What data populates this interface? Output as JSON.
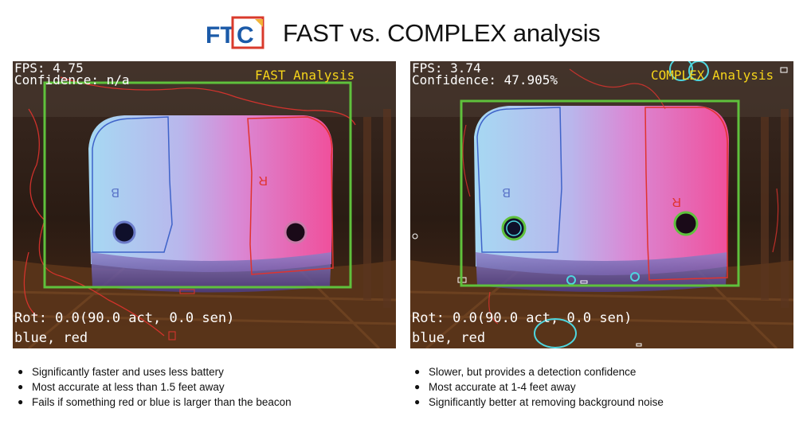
{
  "header": {
    "logo_text": "FTC",
    "title": "FAST vs. COMPLEX analysis"
  },
  "panels": [
    {
      "fps": "FPS: 4.75",
      "confidence": "Confidence: n/a",
      "analysis_label": "FAST Analysis",
      "rotation": "Rot: 0.0(90.0 act, 0.0 sen)",
      "detection": "blue, red",
      "blue_marker": "B",
      "red_marker": "R",
      "bullets": [
        "Significantly faster and uses less battery",
        "Most accurate at less than 1.5 feet away",
        "Fails if something red or blue is larger than the beacon"
      ]
    },
    {
      "fps": "FPS: 3.74",
      "confidence": "Confidence: 47.905%",
      "analysis_label": "COMPLEX Analysis",
      "rotation": "Rot: 0.0(90.0 act, 0.0 sen)",
      "detection": "blue, red",
      "blue_marker": "B",
      "red_marker": "R",
      "bullets": [
        "Slower, but provides a detection confidence",
        "Most accurate at 1-4 feet away",
        "Significantly better at removing background noise"
      ]
    }
  ],
  "colors": {
    "logo_blue": "#1b5aa8",
    "logo_red": "#d93a2b",
    "bounding_box": "#5fc13c",
    "analysis_label": "#f5d41a",
    "red_contour": "#e0332e",
    "blue_contour": "#3f63c9",
    "circle_cyan": "#4ed6df",
    "circle_green": "#5fc13c"
  }
}
